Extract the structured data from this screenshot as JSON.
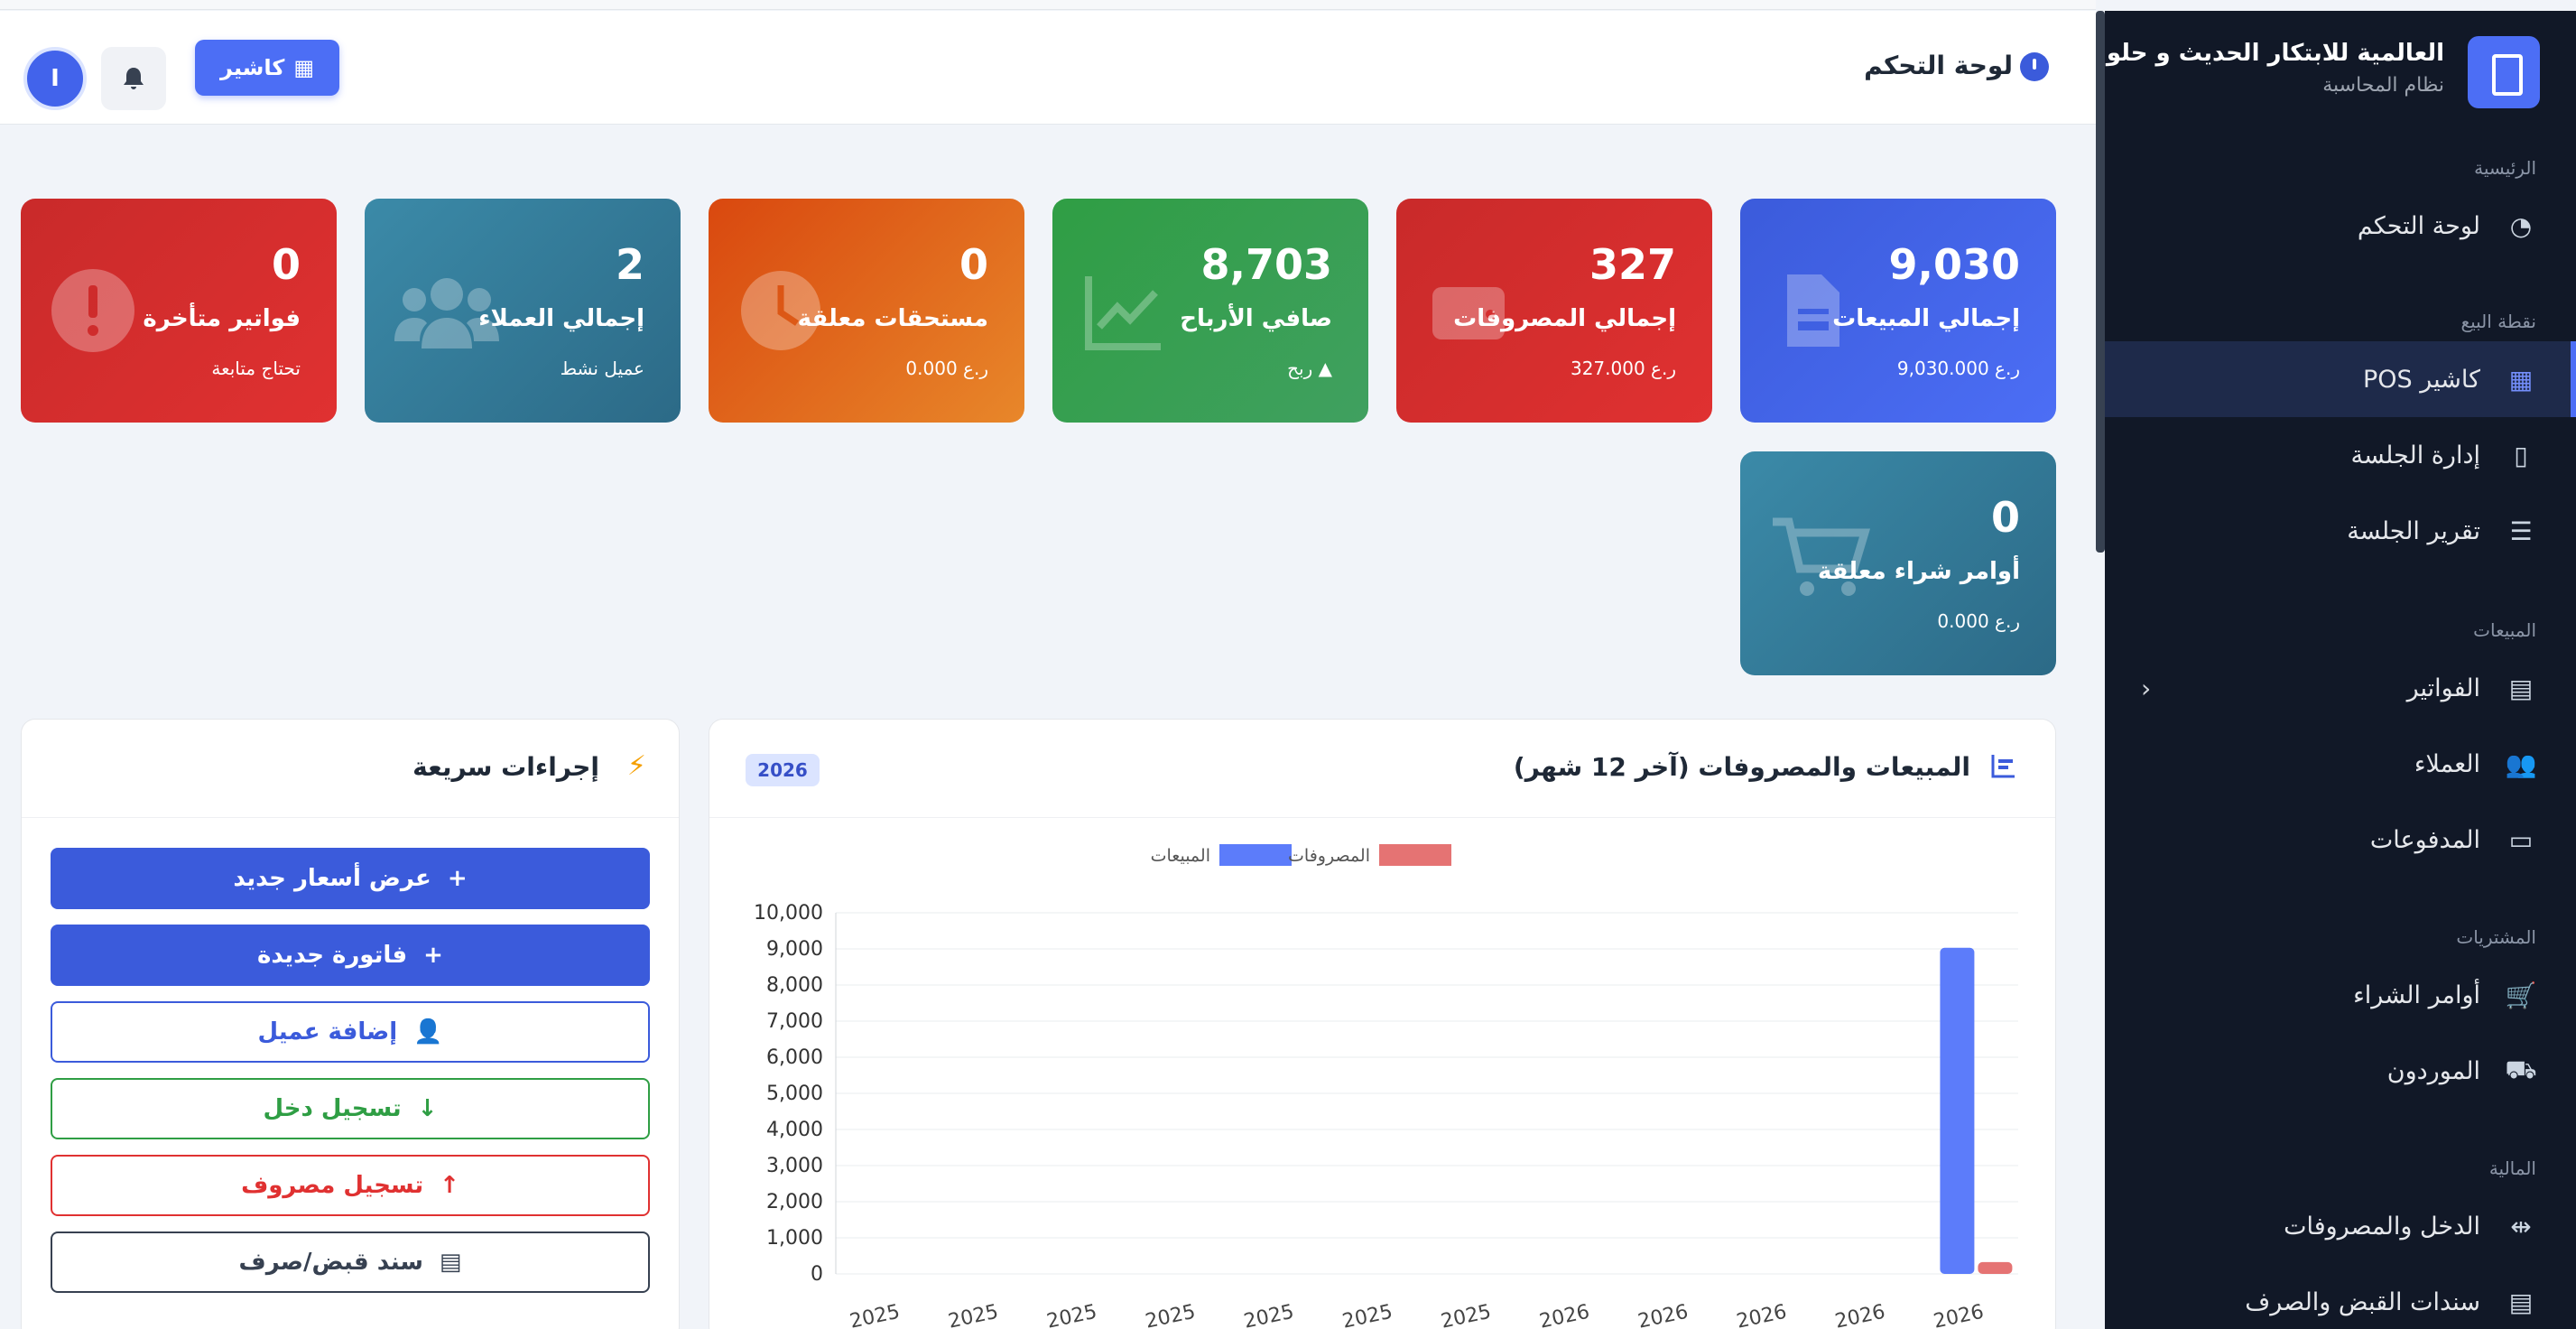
{
  "header": {
    "title": "لوحة التحكم",
    "cashier_label": "كاشير",
    "avatar_letter": "I"
  },
  "cards": [
    {
      "value": "9,030",
      "label": "إجمالي المبيعات",
      "sub": "ر.ع 9,030.000",
      "icon": "invoice-icon",
      "color": "#3b5bdb"
    },
    {
      "value": "327",
      "label": "إجمالي المصروفات",
      "sub": "ر.ع 327.000",
      "icon": "wallet-icon",
      "color": "#e03131"
    },
    {
      "value": "8,703",
      "label": "صافي الأرباح",
      "sub": "▲ ربح",
      "icon": "chart-line-icon",
      "color": "#2f9e44"
    },
    {
      "value": "0",
      "label": "مستحقات معلقة",
      "sub": "ر.ع 0.000",
      "icon": "clock-icon",
      "color": "#e8872a"
    },
    {
      "value": "2",
      "label": "إجمالي العملاء",
      "sub": "عميل نشط",
      "icon": "users-icon",
      "color": "#3b8aa8"
    },
    {
      "value": "0",
      "label": "فواتير متأخرة",
      "sub": "تحتاج متابعة",
      "icon": "alert-icon",
      "color": "#e03131"
    },
    {
      "value": "0",
      "label": "أوامر شراء معلقة",
      "sub": "ر.ع 0.000",
      "icon": "cart-icon",
      "color": "#3b8aa8"
    }
  ],
  "chart_panel": {
    "title": "المبيعات والمصروفات (آخر 12 شهر)",
    "year_badge": "2026"
  },
  "chart_data": {
    "type": "bar",
    "categories": [
      "2025",
      "2025",
      "2025",
      "2025",
      "2025",
      "2025",
      "2025",
      "2026",
      "2026",
      "2026",
      "2026",
      "2026"
    ],
    "series": [
      {
        "name": "المبيعات",
        "color": "#5c7cfa",
        "values": [
          0,
          0,
          0,
          0,
          0,
          0,
          0,
          0,
          0,
          0,
          0,
          9030
        ]
      },
      {
        "name": "المصروفات",
        "color": "#e57373",
        "values": [
          0,
          0,
          0,
          0,
          0,
          0,
          0,
          0,
          0,
          0,
          0,
          327
        ]
      }
    ],
    "ylim": [
      0,
      10000
    ],
    "yticks": [
      "0",
      "1,000",
      "2,000",
      "3,000",
      "4,000",
      "5,000",
      "6,000",
      "7,000",
      "8,000",
      "9,000",
      "10,000"
    ],
    "legend": "top-center",
    "grid": true
  },
  "quick": {
    "title": "إجراءات سريعة",
    "buttons": [
      {
        "label": "عرض أسعار جديد",
        "icon": "+",
        "style": "fill",
        "color": "#3b5bdb"
      },
      {
        "label": "فاتورة جديدة",
        "icon": "+",
        "style": "fill",
        "color": "#3b5bdb"
      },
      {
        "label": "إضافة عميل",
        "icon": "👤",
        "style": "outline",
        "color": "#3b5bdb"
      },
      {
        "label": "تسجيل دخل",
        "icon": "↓",
        "style": "outline",
        "color": "#2f9e44"
      },
      {
        "label": "تسجيل مصروف",
        "icon": "↑",
        "style": "outline",
        "color": "#e03131"
      },
      {
        "label": "سند قبض/صرف",
        "icon": "▤",
        "style": "outline",
        "color": "#374151"
      }
    ]
  },
  "sidebar": {
    "brand": "العالمية للابتكار الحديث و حلو",
    "brand_sub": "نظام المحاسبة",
    "sections": [
      {
        "heading": "الرئيسية",
        "items": [
          {
            "label": "لوحة التحكم",
            "icon": "dashboard-icon"
          }
        ]
      },
      {
        "heading": "نقطة البيع",
        "items": [
          {
            "label": "كاشير POS",
            "icon": "cash-register-icon",
            "active": true
          },
          {
            "label": "إدارة الجلسة",
            "icon": "door-icon"
          },
          {
            "label": "تقرير الجلسة",
            "icon": "report-icon"
          }
        ]
      },
      {
        "heading": "المبيعات",
        "items": [
          {
            "label": "الفواتير",
            "icon": "invoice-icon",
            "chevron": true
          },
          {
            "label": "العملاء",
            "icon": "users-icon"
          },
          {
            "label": "المدفوعات",
            "icon": "card-icon"
          }
        ]
      },
      {
        "heading": "المشتريات",
        "items": [
          {
            "label": "أوامر الشراء",
            "icon": "cart-icon"
          },
          {
            "label": "الموردون",
            "icon": "truck-icon"
          }
        ]
      },
      {
        "heading": "المالية",
        "items": [
          {
            "label": "الدخل والمصروفات",
            "icon": "exchange-icon"
          },
          {
            "label": "سندات القبض والصرف",
            "icon": "receipt-icon"
          }
        ]
      }
    ]
  }
}
